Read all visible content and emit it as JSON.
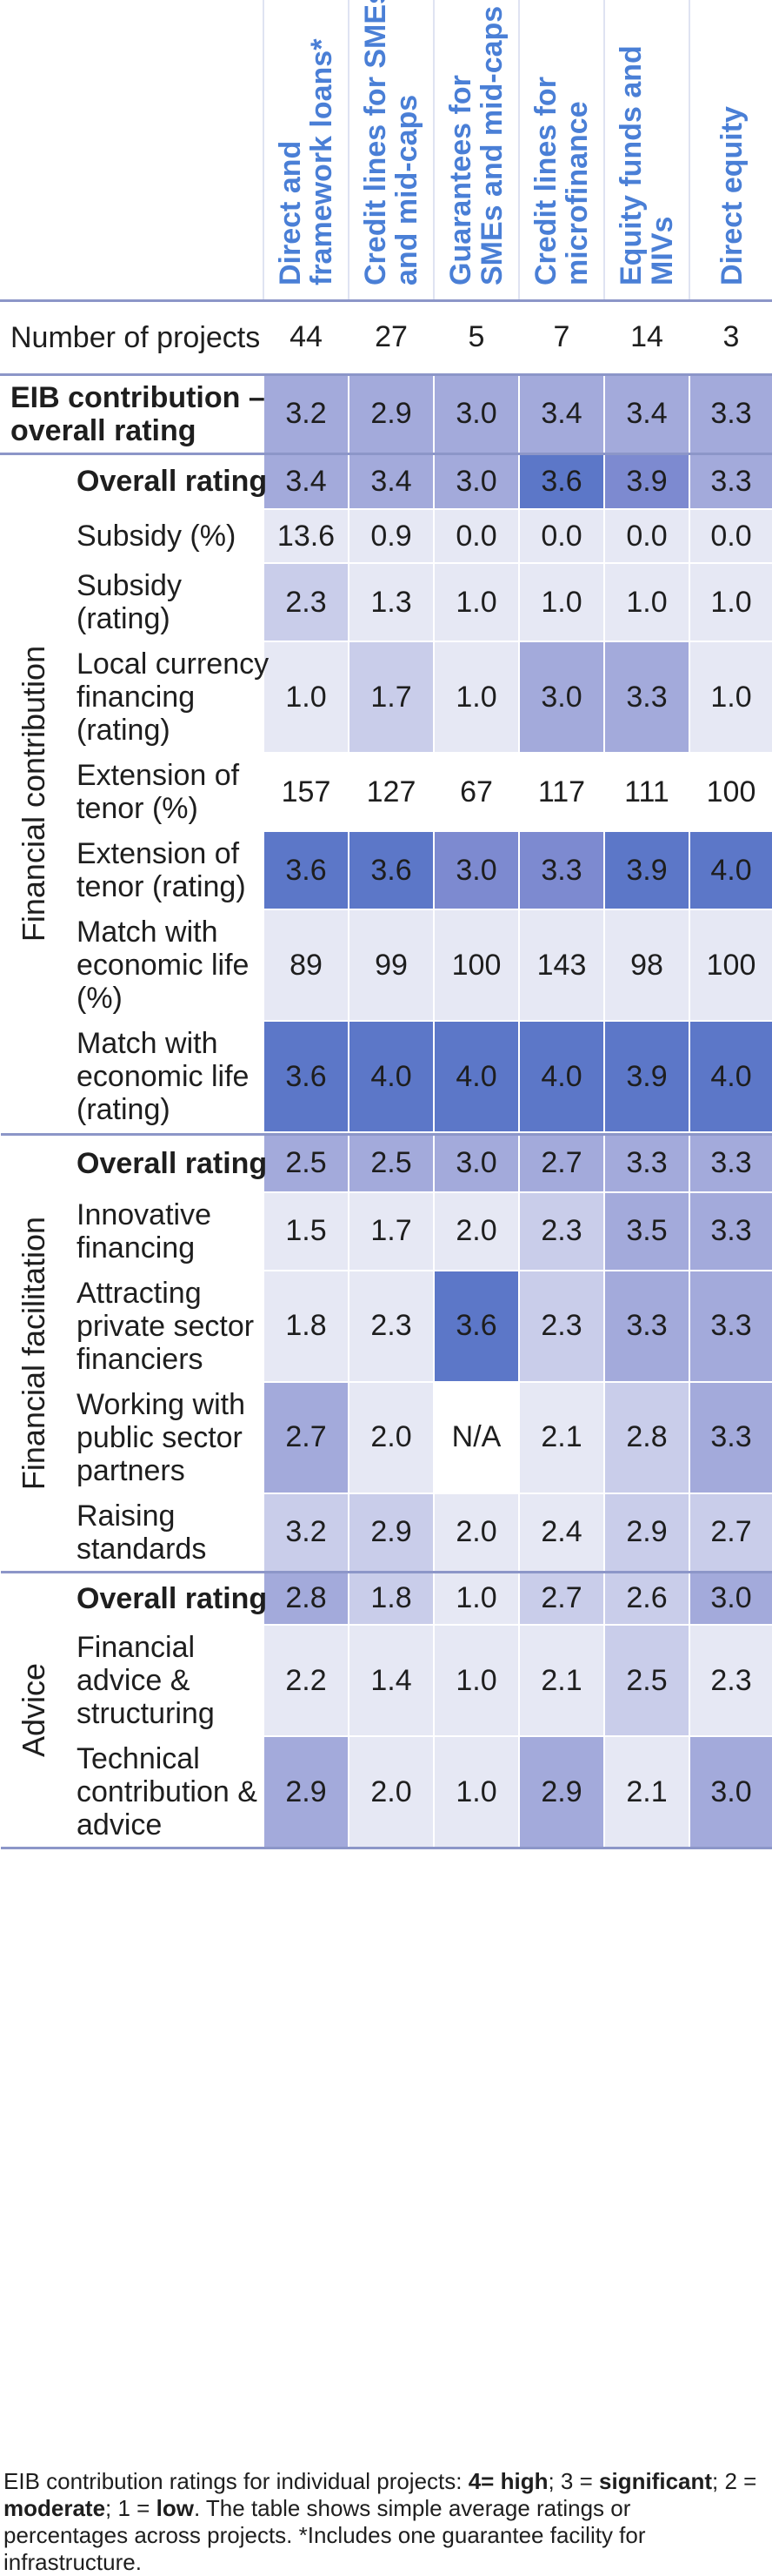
{
  "columns": [
    "Direct and\nframework loans*",
    "Credit lines for SMEs\nand mid-caps",
    "Guarantees for\nSMEs and mid-caps",
    "Credit lines for\nmicrofinance",
    "Equity funds and\nMIVs",
    "Direct equity"
  ],
  "rows": {
    "projects": {
      "label": "Number of projects",
      "values": [
        "44",
        "27",
        "5",
        "7",
        "14",
        "3"
      ]
    },
    "eib": {
      "label": "EIB contribution –\noverall rating",
      "values": [
        "3.2",
        "2.9",
        "3.0",
        "3.4",
        "3.4",
        "3.3"
      ]
    },
    "fc_overall": {
      "label": "Overall rating",
      "values": [
        "3.4",
        "3.4",
        "3.0",
        "3.6",
        "3.9",
        "3.3"
      ]
    },
    "fc_subsidy_pct": {
      "label": "Subsidy (%)",
      "values": [
        "13.6",
        "0.9",
        "0.0",
        "0.0",
        "0.0",
        "0.0"
      ]
    },
    "fc_subsidy_rating": {
      "label": "Subsidy\n(rating)",
      "values": [
        "2.3",
        "1.3",
        "1.0",
        "1.0",
        "1.0",
        "1.0"
      ]
    },
    "fc_local": {
      "label": "Local currency\nfinancing\n(rating)",
      "values": [
        "1.0",
        "1.7",
        "1.0",
        "3.0",
        "3.3",
        "1.0"
      ]
    },
    "fc_tenor_pct": {
      "label": "Extension of\ntenor (%)",
      "values": [
        "157",
        "127",
        "67",
        "117",
        "111",
        "100"
      ]
    },
    "fc_tenor_rating": {
      "label": "Extension of\ntenor (rating)",
      "values": [
        "3.6",
        "3.6",
        "3.0",
        "3.3",
        "3.9",
        "4.0"
      ]
    },
    "fc_match_pct": {
      "label": "Match with\neconomic life\n(%)",
      "values": [
        "89",
        "99",
        "100",
        "143",
        "98",
        "100"
      ]
    },
    "fc_match_rating": {
      "label": "Match with\neconomic life\n(rating)",
      "values": [
        "3.6",
        "4.0",
        "4.0",
        "4.0",
        "3.9",
        "4.0"
      ]
    },
    "ff_overall": {
      "label": "Overall rating",
      "values": [
        "2.5",
        "2.5",
        "3.0",
        "2.7",
        "3.3",
        "3.3"
      ]
    },
    "ff_innov": {
      "label": "Innovative\nfinancing",
      "values": [
        "1.5",
        "1.7",
        "2.0",
        "2.3",
        "3.5",
        "3.3"
      ]
    },
    "ff_private": {
      "label": "Attracting\nprivate sector\nfinanciers",
      "values": [
        "1.8",
        "2.3",
        "3.6",
        "2.3",
        "3.3",
        "3.3"
      ]
    },
    "ff_public": {
      "label": "Working with\npublic sector\npartners",
      "values": [
        "2.7",
        "2.0",
        "N/A",
        "2.1",
        "2.8",
        "3.3"
      ]
    },
    "ff_standards": {
      "label": "Raising\nstandards",
      "values": [
        "3.2",
        "2.9",
        "2.0",
        "2.4",
        "2.9",
        "2.7"
      ]
    },
    "ad_overall": {
      "label": "Overall rating",
      "values": [
        "2.8",
        "1.8",
        "1.0",
        "2.7",
        "2.6",
        "3.0"
      ]
    },
    "ad_financial": {
      "label": "Financial\nadvice &\nstructuring",
      "values": [
        "2.2",
        "1.4",
        "1.0",
        "2.1",
        "2.5",
        "2.3"
      ]
    },
    "ad_technical": {
      "label": "Technical\ncontribution &\nadvice",
      "values": [
        "2.9",
        "2.0",
        "1.0",
        "2.9",
        "2.1",
        "3.0"
      ]
    }
  },
  "sections": {
    "financial_contribution": "Financial contribution",
    "financial_facilitation": "Financial facilitation",
    "advice": "Advice"
  },
  "footnote": {
    "part1": "EIB contribution ratings for individual projects: ",
    "high": "4= high",
    "sep1": "; 3 = ",
    "significant": "significant",
    "sep2": "; 2 = ",
    "moderate": "moderate",
    "sep3": "; 1 = ",
    "low": "low",
    "part2": ". The table shows simple average ratings or percentages across projects. *Includes one guarantee facility for infrastructure."
  },
  "colors": {
    "plain": "#ffffff",
    "lightest": "#e6e8f4",
    "light": "#c9cdea",
    "medium": "#a3aadb",
    "dark": "#7d8ad0",
    "darkest": "#5c77c8",
    "rule": "#8c96c8",
    "header_text": "#4a7fd6"
  },
  "shading": {
    "projects": [
      0,
      0,
      0,
      0,
      0,
      0
    ],
    "eib": [
      3,
      3,
      3,
      3,
      3,
      3
    ],
    "fc_overall": [
      3,
      3,
      3,
      5,
      4,
      3
    ],
    "fc_subsidy_pct": [
      1,
      1,
      1,
      1,
      1,
      1
    ],
    "fc_subsidy_rating": [
      2,
      1,
      1,
      1,
      1,
      1
    ],
    "fc_local": [
      1,
      2,
      1,
      3,
      3,
      1
    ],
    "fc_tenor_pct": [
      0,
      0,
      0,
      0,
      0,
      0
    ],
    "fc_tenor_rating": [
      5,
      5,
      4,
      4,
      5,
      5
    ],
    "fc_match_pct": [
      1,
      1,
      1,
      1,
      1,
      1
    ],
    "fc_match_rating": [
      5,
      5,
      5,
      5,
      5,
      5
    ],
    "ff_overall": [
      3,
      3,
      3,
      3,
      3,
      3
    ],
    "ff_innov": [
      1,
      1,
      1,
      2,
      3,
      3
    ],
    "ff_private": [
      1,
      1,
      5,
      2,
      3,
      3
    ],
    "ff_public": [
      3,
      1,
      0,
      1,
      2,
      3
    ],
    "ff_standards": [
      2,
      2,
      1,
      1,
      2,
      2
    ],
    "ad_overall": [
      3,
      2,
      1,
      2,
      2,
      3
    ],
    "ad_financial": [
      1,
      1,
      1,
      1,
      2,
      1
    ],
    "ad_technical": [
      3,
      1,
      1,
      3,
      1,
      3
    ]
  }
}
